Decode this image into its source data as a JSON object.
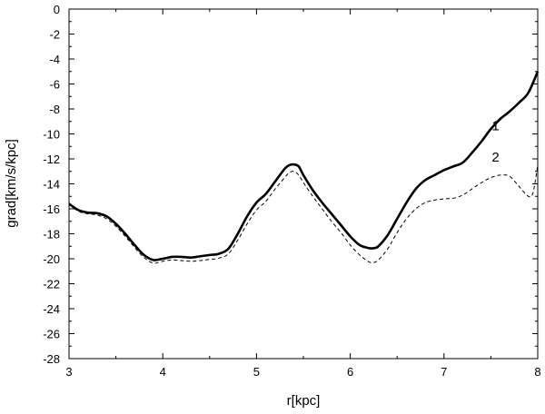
{
  "chart_data": {
    "type": "line",
    "title": "",
    "xlabel": "r[kpc]",
    "ylabel": "grad[km/s/kpc]",
    "xlim": [
      3,
      8
    ],
    "ylim": [
      -28,
      0
    ],
    "x_major_ticks": [
      3,
      4,
      5,
      6,
      7,
      8
    ],
    "y_major_ticks": [
      0,
      -2,
      -4,
      -6,
      -8,
      -10,
      -12,
      -14,
      -16,
      -18,
      -20,
      -22,
      -24,
      -26,
      -28
    ],
    "grid": false,
    "legend": "none",
    "series": [
      {
        "name": "1",
        "style": "solid",
        "color": "#000000",
        "label_at": [
          7.55,
          -9.7
        ],
        "points": [
          [
            3.0,
            -15.6
          ],
          [
            3.1,
            -16.1
          ],
          [
            3.2,
            -16.3
          ],
          [
            3.3,
            -16.35
          ],
          [
            3.4,
            -16.6
          ],
          [
            3.5,
            -17.2
          ],
          [
            3.6,
            -18.0
          ],
          [
            3.7,
            -18.9
          ],
          [
            3.8,
            -19.7
          ],
          [
            3.9,
            -20.1
          ],
          [
            4.0,
            -20.0
          ],
          [
            4.1,
            -19.85
          ],
          [
            4.2,
            -19.85
          ],
          [
            4.3,
            -19.9
          ],
          [
            4.4,
            -19.8
          ],
          [
            4.5,
            -19.7
          ],
          [
            4.6,
            -19.6
          ],
          [
            4.7,
            -19.2
          ],
          [
            4.8,
            -18.0
          ],
          [
            4.9,
            -16.6
          ],
          [
            5.0,
            -15.5
          ],
          [
            5.1,
            -14.8
          ],
          [
            5.2,
            -13.8
          ],
          [
            5.3,
            -12.8
          ],
          [
            5.35,
            -12.5
          ],
          [
            5.4,
            -12.45
          ],
          [
            5.45,
            -12.6
          ],
          [
            5.5,
            -13.3
          ],
          [
            5.6,
            -14.5
          ],
          [
            5.7,
            -15.5
          ],
          [
            5.8,
            -16.4
          ],
          [
            5.9,
            -17.3
          ],
          [
            6.0,
            -18.2
          ],
          [
            6.1,
            -18.9
          ],
          [
            6.2,
            -19.15
          ],
          [
            6.25,
            -19.15
          ],
          [
            6.3,
            -19.0
          ],
          [
            6.4,
            -18.1
          ],
          [
            6.5,
            -16.8
          ],
          [
            6.6,
            -15.5
          ],
          [
            6.7,
            -14.4
          ],
          [
            6.8,
            -13.7
          ],
          [
            6.9,
            -13.3
          ],
          [
            7.0,
            -12.9
          ],
          [
            7.1,
            -12.6
          ],
          [
            7.2,
            -12.3
          ],
          [
            7.3,
            -11.5
          ],
          [
            7.4,
            -10.6
          ],
          [
            7.5,
            -9.6
          ],
          [
            7.6,
            -8.8
          ],
          [
            7.7,
            -8.2
          ],
          [
            7.8,
            -7.5
          ],
          [
            7.9,
            -6.7
          ],
          [
            8.0,
            -5.0
          ]
        ]
      },
      {
        "name": "2",
        "style": "dashed",
        "color": "#000000",
        "label_at": [
          7.55,
          -12.2
        ],
        "points": [
          [
            3.0,
            -15.6
          ],
          [
            3.1,
            -16.2
          ],
          [
            3.2,
            -16.4
          ],
          [
            3.3,
            -16.5
          ],
          [
            3.4,
            -16.8
          ],
          [
            3.5,
            -17.4
          ],
          [
            3.6,
            -18.2
          ],
          [
            3.7,
            -19.1
          ],
          [
            3.8,
            -19.9
          ],
          [
            3.9,
            -20.35
          ],
          [
            4.0,
            -20.2
          ],
          [
            4.1,
            -20.1
          ],
          [
            4.2,
            -20.15
          ],
          [
            4.3,
            -20.2
          ],
          [
            4.4,
            -20.15
          ],
          [
            4.5,
            -20.05
          ],
          [
            4.6,
            -19.95
          ],
          [
            4.7,
            -19.6
          ],
          [
            4.8,
            -18.5
          ],
          [
            4.9,
            -17.2
          ],
          [
            5.0,
            -16.1
          ],
          [
            5.1,
            -15.4
          ],
          [
            5.2,
            -14.4
          ],
          [
            5.3,
            -13.5
          ],
          [
            5.35,
            -13.1
          ],
          [
            5.4,
            -13.0
          ],
          [
            5.45,
            -13.3
          ],
          [
            5.5,
            -13.9
          ],
          [
            5.6,
            -15.0
          ],
          [
            5.7,
            -16.0
          ],
          [
            5.8,
            -17.0
          ],
          [
            5.9,
            -17.9
          ],
          [
            6.0,
            -18.9
          ],
          [
            6.1,
            -19.7
          ],
          [
            6.2,
            -20.25
          ],
          [
            6.25,
            -20.3
          ],
          [
            6.3,
            -20.1
          ],
          [
            6.4,
            -19.2
          ],
          [
            6.5,
            -17.9
          ],
          [
            6.6,
            -16.8
          ],
          [
            6.7,
            -16.0
          ],
          [
            6.8,
            -15.5
          ],
          [
            6.9,
            -15.3
          ],
          [
            7.0,
            -15.2
          ],
          [
            7.1,
            -15.15
          ],
          [
            7.2,
            -14.9
          ],
          [
            7.3,
            -14.4
          ],
          [
            7.4,
            -13.9
          ],
          [
            7.5,
            -13.5
          ],
          [
            7.6,
            -13.3
          ],
          [
            7.7,
            -13.4
          ],
          [
            7.8,
            -14.2
          ],
          [
            7.9,
            -15.0
          ],
          [
            7.95,
            -14.7
          ],
          [
            8.0,
            -12.5
          ]
        ]
      }
    ]
  }
}
